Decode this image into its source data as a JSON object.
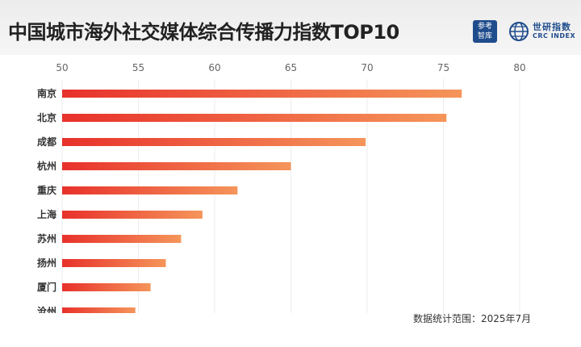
{
  "header": {
    "title": "中国城市海外社交媒体综合传播力指数TOP10",
    "logo_left_line1": "参考",
    "logo_left_line2": "智库",
    "logo_right_name": "世研指数",
    "logo_right_sub": "CRC INDEX",
    "brand_color": "#1f4c8c"
  },
  "footnote": "数据统计范围：2025年7月",
  "chart_data": {
    "type": "bar",
    "orientation": "horizontal",
    "title": "中国城市海外社交媒体综合传播力指数TOP10",
    "categories": [
      "南京",
      "北京",
      "成都",
      "杭州",
      "重庆",
      "上海",
      "苏州",
      "扬州",
      "厦门",
      "沧州"
    ],
    "values": [
      76.2,
      75.2,
      69.9,
      65.0,
      61.5,
      59.2,
      57.8,
      56.8,
      55.8,
      54.8
    ],
    "xlim": [
      50,
      80
    ],
    "xticks": [
      50,
      55,
      60,
      65,
      70,
      75,
      80
    ],
    "xticks_position": "top",
    "grid": true,
    "bar_gradient": [
      "#e8312b",
      "#f5955a"
    ]
  }
}
